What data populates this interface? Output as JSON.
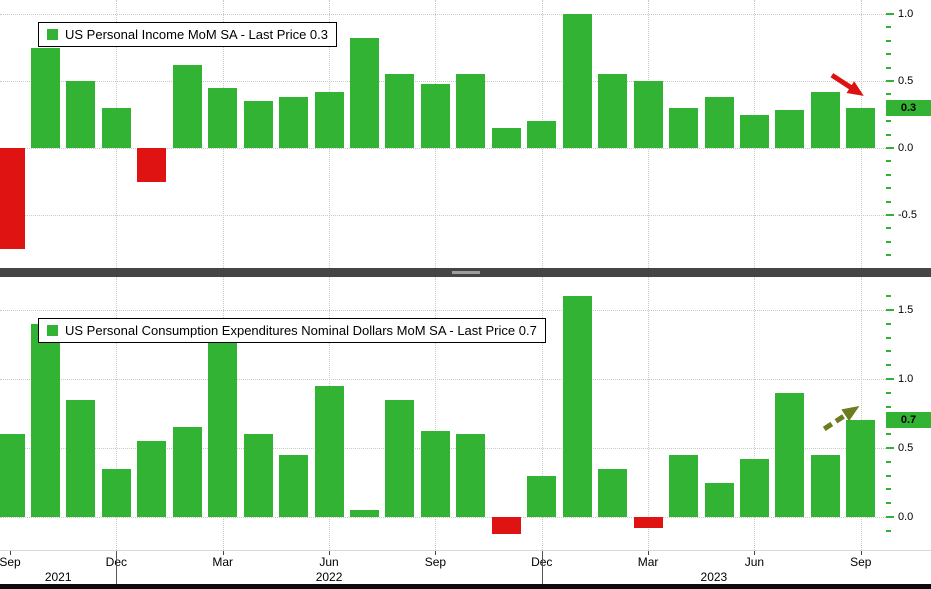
{
  "colors": {
    "bar_green": "#33b333",
    "bar_red": "#e01313",
    "arrow_red": "#dd1111",
    "arrow_olive": "#6e7b1e",
    "axis_green": "#33b333",
    "divider": "#454545",
    "background": "#ffffff"
  },
  "chart_data": [
    {
      "type": "bar",
      "title": "US Personal Income MoM SA - Last Price 0.3",
      "last_price_label": "0.3",
      "yticks": [
        "1.0",
        "0.5",
        "0.0",
        "-0.5"
      ],
      "ylim": [
        -0.85,
        1.1
      ],
      "categories": [
        "Sep 2021",
        "Oct 2021",
        "Nov 2021",
        "Dec 2021",
        "Jan 2022",
        "Feb 2022",
        "Mar 2022",
        "Apr 2022",
        "May 2022",
        "Jun 2022",
        "Jul 2022",
        "Aug 2022",
        "Sep 2022",
        "Oct 2022",
        "Nov 2022",
        "Dec 2022",
        "Jan 2023",
        "Feb 2023",
        "Mar 2023",
        "Apr 2023",
        "May 2023",
        "Jun 2023",
        "Jul 2023",
        "Aug 2023",
        "Sep 2023"
      ],
      "values": [
        -0.75,
        0.75,
        0.5,
        0.3,
        -0.25,
        0.62,
        0.45,
        0.35,
        0.38,
        0.42,
        0.82,
        0.55,
        0.48,
        0.55,
        0.15,
        0.2,
        1.0,
        0.55,
        0.5,
        0.3,
        0.38,
        0.25,
        0.28,
        0.42,
        0.3
      ]
    },
    {
      "type": "bar",
      "title": "US Personal Consumption Expenditures Nominal Dollars MoM SA - Last Price 0.7",
      "last_price_label": "0.7",
      "yticks": [
        "1.5",
        "1.0",
        "0.5",
        "0.0"
      ],
      "ylim": [
        -0.2,
        1.7
      ],
      "categories": [
        "Sep 2021",
        "Oct 2021",
        "Nov 2021",
        "Dec 2021",
        "Jan 2022",
        "Feb 2022",
        "Mar 2022",
        "Apr 2022",
        "May 2022",
        "Jun 2022",
        "Jul 2022",
        "Aug 2022",
        "Sep 2022",
        "Oct 2022",
        "Nov 2022",
        "Dec 2022",
        "Jan 2023",
        "Feb 2023",
        "Mar 2023",
        "Apr 2023",
        "May 2023",
        "Jun 2023",
        "Jul 2023",
        "Aug 2023",
        "Sep 2023"
      ],
      "values": [
        0.6,
        1.4,
        0.85,
        0.35,
        0.55,
        0.65,
        1.35,
        0.6,
        0.45,
        0.95,
        0.05,
        0.85,
        0.62,
        0.6,
        -0.12,
        0.3,
        1.6,
        0.35,
        -0.08,
        0.45,
        0.25,
        0.42,
        0.9,
        0.45,
        0.7
      ]
    }
  ],
  "x_axis": {
    "month_ticks": [
      {
        "index": 0,
        "label": "Sep"
      },
      {
        "index": 3,
        "label": "Dec"
      },
      {
        "index": 6,
        "label": "Mar"
      },
      {
        "index": 9,
        "label": "Jun"
      },
      {
        "index": 12,
        "label": "Sep"
      },
      {
        "index": 15,
        "label": "Dec"
      },
      {
        "index": 18,
        "label": "Mar"
      },
      {
        "index": 21,
        "label": "Jun"
      },
      {
        "index": 24,
        "label": "Sep"
      }
    ],
    "years": [
      "2021",
      "2022",
      "2023"
    ]
  }
}
